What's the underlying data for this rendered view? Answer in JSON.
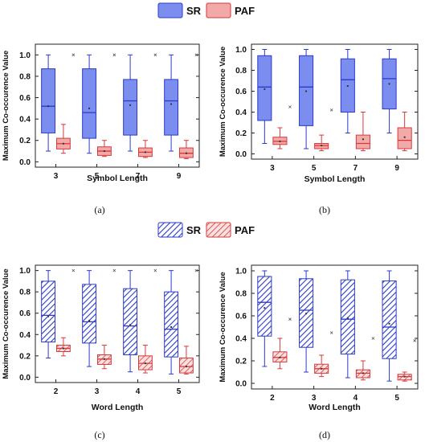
{
  "legends": [
    {
      "hatched": false,
      "items": [
        {
          "label": "SR",
          "color": "#7b8ef0",
          "edge": "#2b3acb"
        },
        {
          "label": "PAF",
          "color": "#f2aaa8",
          "edge": "#d9383a"
        }
      ]
    },
    {
      "hatched": true,
      "items": [
        {
          "label": "SR",
          "color": "#7b8ef0",
          "edge": "#2b3acb"
        },
        {
          "label": "PAF",
          "color": "#f2aaa8",
          "edge": "#d9383a"
        }
      ]
    }
  ],
  "chart_data": [
    {
      "panel_label": "(a)",
      "type": "box",
      "hatched": false,
      "xlabel": "Symbol Length",
      "ylabel": "Maximum Co-occurence Value",
      "ylim": [
        -0.05,
        1.1
      ],
      "yticks": [
        "0.0",
        "0.2",
        "0.4",
        "0.6",
        "0.8",
        "1.0"
      ],
      "categories": [
        "3",
        "5",
        "7",
        "9"
      ],
      "series": [
        {
          "name": "SR",
          "boxes": [
            {
              "min": 0.1,
              "q1": 0.27,
              "median": 0.52,
              "q3": 0.87,
              "max": 1.0,
              "mean": 0.52,
              "outlier": null
            },
            {
              "min": 0.08,
              "q1": 0.22,
              "median": 0.46,
              "q3": 0.87,
              "max": 1.0,
              "mean": 0.5,
              "outlier": null
            },
            {
              "min": 0.1,
              "q1": 0.25,
              "median": 0.57,
              "q3": 0.77,
              "max": 1.0,
              "mean": 0.53,
              "outlier": null
            },
            {
              "min": 0.1,
              "q1": 0.25,
              "median": 0.57,
              "q3": 0.77,
              "max": 1.0,
              "mean": 0.54,
              "outlier": null
            }
          ]
        },
        {
          "name": "PAF",
          "boxes": [
            {
              "min": 0.08,
              "q1": 0.12,
              "median": 0.17,
              "q3": 0.22,
              "max": 0.35,
              "mean": 0.17,
              "outlier": 1.0
            },
            {
              "min": 0.05,
              "q1": 0.06,
              "median": 0.1,
              "q3": 0.14,
              "max": 0.2,
              "mean": 0.1,
              "outlier": 1.0
            },
            {
              "min": 0.04,
              "q1": 0.05,
              "median": 0.09,
              "q3": 0.13,
              "max": 0.2,
              "mean": 0.09,
              "outlier": 1.0
            },
            {
              "min": 0.03,
              "q1": 0.04,
              "median": 0.08,
              "q3": 0.13,
              "max": 0.2,
              "mean": 0.08,
              "outlier": 1.0
            }
          ]
        }
      ]
    },
    {
      "panel_label": "(b)",
      "type": "box",
      "hatched": false,
      "xlabel": "Symbol Length",
      "ylabel": "Maximum Co-occurence Value",
      "ylim": [
        -0.05,
        1.05
      ],
      "yticks": [
        "0.0",
        "0.2",
        "0.4",
        "0.6",
        "0.8",
        "1.0"
      ],
      "categories": [
        "3",
        "5",
        "7",
        "9"
      ],
      "series": [
        {
          "name": "SR",
          "boxes": [
            {
              "min": 0.1,
              "q1": 0.32,
              "median": 0.64,
              "q3": 0.94,
              "max": 1.0,
              "mean": 0.62,
              "outlier": null
            },
            {
              "min": 0.05,
              "q1": 0.27,
              "median": 0.64,
              "q3": 0.94,
              "max": 1.0,
              "mean": 0.6,
              "outlier": null
            },
            {
              "min": 0.2,
              "q1": 0.4,
              "median": 0.71,
              "q3": 0.91,
              "max": 1.0,
              "mean": 0.65,
              "outlier": null
            },
            {
              "min": 0.2,
              "q1": 0.43,
              "median": 0.72,
              "q3": 0.91,
              "max": 1.0,
              "mean": 0.67,
              "outlier": null
            }
          ]
        },
        {
          "name": "PAF",
          "boxes": [
            {
              "min": 0.05,
              "q1": 0.09,
              "median": 0.12,
              "q3": 0.16,
              "max": 0.25,
              "mean": 0.12,
              "outlier": 0.45
            },
            {
              "min": 0.03,
              "q1": 0.05,
              "median": 0.08,
              "q3": 0.1,
              "max": 0.18,
              "mean": 0.08,
              "outlier": 0.42
            },
            {
              "min": 0.03,
              "q1": 0.05,
              "median": 0.1,
              "q3": 0.18,
              "max": 0.4,
              "mean": 0.14,
              "outlier": null
            },
            {
              "min": 0.03,
              "q1": 0.05,
              "median": 0.13,
              "q3": 0.25,
              "max": 0.4,
              "mean": 0.16,
              "outlier": null
            }
          ]
        }
      ]
    },
    {
      "panel_label": "(c)",
      "type": "box",
      "hatched": true,
      "xlabel": "Word Length",
      "ylabel": "Maximum Co-occurence Value",
      "ylim": [
        -0.05,
        1.05
      ],
      "yticks": [
        "0.0",
        "0.2",
        "0.4",
        "0.6",
        "0.8",
        "1.0"
      ],
      "categories": [
        "2",
        "3",
        "4",
        "5"
      ],
      "series": [
        {
          "name": "SR",
          "boxes": [
            {
              "min": 0.18,
              "q1": 0.33,
              "median": 0.58,
              "q3": 0.9,
              "max": 1.0,
              "mean": 0.57,
              "outlier": null
            },
            {
              "min": 0.1,
              "q1": 0.32,
              "median": 0.52,
              "q3": 0.87,
              "max": 1.0,
              "mean": 0.53,
              "outlier": null
            },
            {
              "min": 0.05,
              "q1": 0.21,
              "median": 0.48,
              "q3": 0.83,
              "max": 1.0,
              "mean": 0.49,
              "outlier": null
            },
            {
              "min": 0.03,
              "q1": 0.19,
              "median": 0.45,
              "q3": 0.8,
              "max": 1.0,
              "mean": 0.47,
              "outlier": null
            }
          ]
        },
        {
          "name": "PAF",
          "boxes": [
            {
              "min": 0.2,
              "q1": 0.24,
              "median": 0.27,
              "q3": 0.3,
              "max": 0.37,
              "mean": 0.27,
              "outlier": 1.0
            },
            {
              "min": 0.08,
              "q1": 0.12,
              "median": 0.17,
              "q3": 0.21,
              "max": 0.3,
              "mean": 0.17,
              "outlier": 1.0
            },
            {
              "min": 0.04,
              "q1": 0.07,
              "median": 0.13,
              "q3": 0.2,
              "max": 0.3,
              "mean": 0.13,
              "outlier": 1.0
            },
            {
              "min": 0.03,
              "q1": 0.04,
              "median": 0.1,
              "q3": 0.18,
              "max": 0.29,
              "mean": 0.1,
              "outlier": 1.0
            }
          ]
        }
      ]
    },
    {
      "panel_label": "(d)",
      "type": "box",
      "hatched": true,
      "xlabel": "Word Length",
      "ylabel": "Maximum Co-occurence Value",
      "ylim": [
        -0.05,
        1.05
      ],
      "yticks": [
        "0.0",
        "0.2",
        "0.4",
        "0.6",
        "0.8",
        "1.0"
      ],
      "categories": [
        "2",
        "3",
        "4",
        "5"
      ],
      "series": [
        {
          "name": "SR",
          "boxes": [
            {
              "min": 0.15,
              "q1": 0.42,
              "median": 0.72,
              "q3": 0.95,
              "max": 1.0,
              "mean": 0.67,
              "outlier": null
            },
            {
              "min": 0.1,
              "q1": 0.32,
              "median": 0.65,
              "q3": 0.93,
              "max": 1.0,
              "mean": 0.62,
              "outlier": null
            },
            {
              "min": 0.05,
              "q1": 0.26,
              "median": 0.57,
              "q3": 0.92,
              "max": 1.0,
              "mean": 0.58,
              "outlier": null
            },
            {
              "min": 0.02,
              "q1": 0.22,
              "median": 0.5,
              "q3": 0.91,
              "max": 1.0,
              "mean": 0.53,
              "outlier": null
            }
          ]
        },
        {
          "name": "PAF",
          "boxes": [
            {
              "min": 0.13,
              "q1": 0.19,
              "median": 0.23,
              "q3": 0.28,
              "max": 0.4,
              "mean": 0.23,
              "outlier": 0.57
            },
            {
              "min": 0.06,
              "q1": 0.09,
              "median": 0.13,
              "q3": 0.17,
              "max": 0.25,
              "mean": 0.13,
              "outlier": 0.45
            },
            {
              "min": 0.03,
              "q1": 0.05,
              "median": 0.09,
              "q3": 0.12,
              "max": 0.2,
              "mean": 0.09,
              "outlier": 0.4
            },
            {
              "min": 0.02,
              "q1": 0.03,
              "median": 0.06,
              "q3": 0.08,
              "max": 0.1,
              "mean": 0.06,
              "outlier": 0.38
            }
          ]
        }
      ]
    }
  ]
}
